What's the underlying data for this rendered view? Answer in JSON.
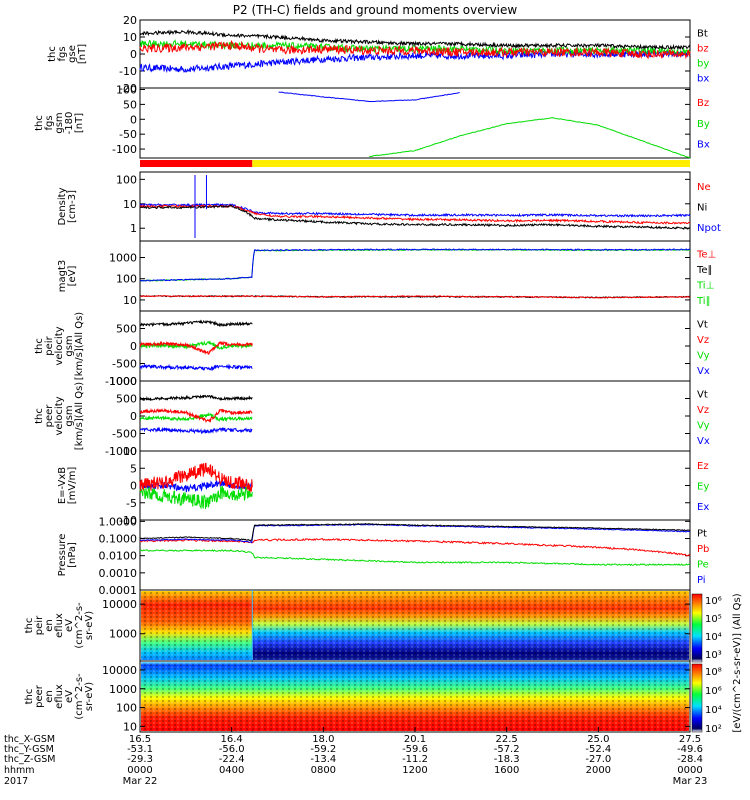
{
  "title": "P2 (TH-C) fields and ground moments overview",
  "colors": {
    "black": "#000000",
    "red": "#ff0000",
    "green": "#00dd00",
    "blue": "#0000ff",
    "yellow": "#ffee00"
  },
  "panels": [
    {
      "id": "fgs",
      "ylabel": [
        "thc",
        "fgs",
        "gse",
        "[nT]"
      ],
      "ticks": [
        {
          "v": 20,
          "t": "20"
        },
        {
          "v": 10,
          "t": "10"
        },
        {
          "v": 0,
          "t": "0"
        },
        {
          "v": -10,
          "t": "-10"
        },
        {
          "v": -20,
          "t": "-20"
        }
      ],
      "ylim": [
        -20,
        20
      ],
      "log": false,
      "legend": [
        {
          "text": "Bt",
          "color": "black"
        },
        {
          "text": "bz",
          "color": "red"
        },
        {
          "text": "by",
          "color": "green"
        },
        {
          "text": "bx",
          "color": "blue"
        }
      ]
    },
    {
      "id": "fgs180",
      "ylabel": [
        "thc",
        "fgs",
        "gsm",
        "-180",
        "[nT]"
      ],
      "ticks": [
        {
          "v": 100,
          "t": "100"
        },
        {
          "v": 50,
          "t": "50"
        },
        {
          "v": 0,
          "t": "0"
        },
        {
          "v": -50,
          "t": "-50"
        },
        {
          "v": -100,
          "t": "-100"
        }
      ],
      "ylim": [
        -130,
        105
      ],
      "log": false,
      "legend": [
        {
          "text": "Bz",
          "color": "red"
        },
        {
          "text": "By",
          "color": "green"
        },
        {
          "text": "Bx",
          "color": "blue"
        }
      ]
    },
    {
      "id": "density",
      "ylabel": [
        "Density",
        "[cm-3]"
      ],
      "ticks": [
        {
          "v": 100,
          "t": "100"
        },
        {
          "v": 10,
          "t": "10"
        },
        {
          "v": 1,
          "t": "1"
        }
      ],
      "ylim": [
        0.3,
        200
      ],
      "log": true,
      "legend": [
        {
          "text": "Ne",
          "color": "red"
        },
        {
          "text": "Ni",
          "color": "black"
        },
        {
          "text": "Npot",
          "color": "blue"
        }
      ]
    },
    {
      "id": "temp",
      "ylabel": [
        "magt3",
        "[eV]"
      ],
      "ticks": [
        {
          "v": 1000,
          "t": "1000"
        },
        {
          "v": 100,
          "t": "100"
        },
        {
          "v": 10,
          "t": "10"
        }
      ],
      "ylim": [
        3,
        6000
      ],
      "log": true,
      "legend": [
        {
          "text": "Te⊥",
          "color": "red"
        },
        {
          "text": "Te∥",
          "color": "black"
        },
        {
          "text": "Ti⊥",
          "color": "green"
        },
        {
          "text": "Ti∥",
          "color": "green"
        }
      ]
    },
    {
      "id": "peir_vel",
      "ylabel": [
        "thc",
        "peir",
        "velocity",
        "gsm",
        "[km/s](All Qs)"
      ],
      "ticks": [
        {
          "v": 500,
          "t": "500"
        },
        {
          "v": 0,
          "t": "0"
        },
        {
          "v": -500,
          "t": "-500"
        },
        {
          "v": -1000,
          "t": "-1000"
        }
      ],
      "ylim": [
        -1000,
        1000
      ],
      "log": false,
      "legend": [
        {
          "text": "Vt",
          "color": "black"
        },
        {
          "text": "Vz",
          "color": "red"
        },
        {
          "text": "Vy",
          "color": "green"
        },
        {
          "text": "Vx",
          "color": "blue"
        }
      ]
    },
    {
      "id": "peer_vel",
      "ylabel": [
        "thc",
        "peer",
        "velocity",
        "gsm",
        "[km/s](All Qs)"
      ],
      "ticks": [
        {
          "v": 1000,
          "t": "1000"
        },
        {
          "v": 500,
          "t": "500"
        },
        {
          "v": 0,
          "t": "0"
        },
        {
          "v": -500,
          "t": "-500"
        },
        {
          "v": -1000,
          "t": "-1000"
        }
      ],
      "ylim": [
        -1000,
        1000
      ],
      "log": false,
      "legend": [
        {
          "text": "Vt",
          "color": "black"
        },
        {
          "text": "Vz",
          "color": "red"
        },
        {
          "text": "Vy",
          "color": "green"
        },
        {
          "text": "Vx",
          "color": "blue"
        }
      ]
    },
    {
      "id": "efield",
      "ylabel": [
        "E=-VxB",
        "[mV/m]"
      ],
      "ticks": [
        {
          "v": 10,
          "t": "10"
        },
        {
          "v": 5,
          "t": "5"
        },
        {
          "v": 0,
          "t": "0"
        },
        {
          "v": -5,
          "t": "-5"
        },
        {
          "v": -10,
          "t": "-10"
        }
      ],
      "ylim": [
        -10,
        10
      ],
      "log": false,
      "legend": [
        {
          "text": "Ez",
          "color": "red"
        },
        {
          "text": "Ey",
          "color": "green"
        },
        {
          "text": "Ex",
          "color": "blue"
        }
      ]
    },
    {
      "id": "pressure",
      "ylabel": [
        "Pressure",
        "[nPa]"
      ],
      "ticks": [
        {
          "v": 1,
          "t": "1.0000"
        },
        {
          "v": 0.1,
          "t": "0.1000"
        },
        {
          "v": 0.01,
          "t": "0.0100"
        },
        {
          "v": 0.001,
          "t": "0.0010"
        },
        {
          "v": 0.0001,
          "t": "0.0001"
        }
      ],
      "ylim": [
        0.0001,
        1.2
      ],
      "log": true,
      "legend": [
        {
          "text": "Pt",
          "color": "black"
        },
        {
          "text": "Pb",
          "color": "red"
        },
        {
          "text": "Pe",
          "color": "green"
        },
        {
          "text": "Pi",
          "color": "blue"
        }
      ]
    },
    {
      "id": "peir_spec",
      "ylabel": [
        "thc",
        "peir",
        "en",
        "eflux",
        "eV",
        "(cm^2-s-",
        "sr-eV)"
      ],
      "ticks": [
        {
          "v": 10000,
          "t": "10000"
        },
        {
          "v": 1000,
          "t": "1000"
        }
      ],
      "ylim": [
        120,
        30000
      ],
      "log": true,
      "legend": []
    },
    {
      "id": "peer_spec",
      "ylabel": [
        "thc",
        "peer",
        "en",
        "eflux",
        "eV",
        "(cm^2-s-",
        "sr-eV)"
      ],
      "ticks": [
        {
          "v": 10000,
          "t": "10000"
        },
        {
          "v": 1000,
          "t": "1000"
        },
        {
          "v": 100,
          "t": "100"
        },
        {
          "v": 10,
          "t": "10"
        }
      ],
      "ylim": [
        5,
        30000
      ],
      "log": true,
      "legend": []
    }
  ],
  "colorbar": {
    "label": "[eV/(cm^2-s-sr-eV)] (All Qs)",
    "top_ticks": [
      "10⁶",
      "10⁵",
      "10⁴",
      "10³"
    ],
    "bottom_ticks": [
      "10⁸",
      "10⁶",
      "10⁴",
      "10²"
    ]
  },
  "axis": {
    "row_labels": [
      "thc_X-GSM",
      "thc_Y-GSM",
      "thc_Z-GSM",
      "hhmm",
      "2017"
    ],
    "ticks": [
      {
        "hour": 0,
        "x": "16.5",
        "y": "-53.1",
        "z": "-29.3",
        "hhmm": "0000",
        "date": "Mar 22"
      },
      {
        "hour": 4,
        "x": "16.4",
        "y": "-56.0",
        "z": "-22.4",
        "hhmm": "0400",
        "date": ""
      },
      {
        "hour": 8,
        "x": "18.0",
        "y": "-59.2",
        "z": "-13.4",
        "hhmm": "0800",
        "date": ""
      },
      {
        "hour": 12,
        "x": "20.1",
        "y": "-59.6",
        "z": "-11.2",
        "hhmm": "1200",
        "date": ""
      },
      {
        "hour": 16,
        "x": "22.5",
        "y": "-57.2",
        "z": "-18.3",
        "hhmm": "1600",
        "date": ""
      },
      {
        "hour": 20,
        "x": "25.0",
        "y": "-52.4",
        "z": "-27.0",
        "hhmm": "2000",
        "date": ""
      },
      {
        "hour": 24,
        "x": "27.5",
        "y": "-49.6",
        "z": "-28.4",
        "hhmm": "0000",
        "date": "Mar 23"
      }
    ]
  },
  "chart_data": {
    "type": "line",
    "title": "P2 (TH-C) fields and ground moments overview",
    "x_unit": "hhmm",
    "xlim": [
      "2017-03-22 00:00",
      "2017-03-23 00:00"
    ],
    "mode_bar": [
      {
        "from_hour": 0,
        "to_hour": 4.9,
        "color": "red"
      },
      {
        "from_hour": 4.9,
        "to_hour": 24,
        "color": "yellow"
      }
    ],
    "series": {
      "fgs": {
        "x": [
          0,
          2,
          4,
          6,
          8,
          10,
          12,
          14,
          16,
          18,
          20,
          22,
          24
        ],
        "Bt": [
          12,
          13,
          11,
          10,
          8,
          7,
          6,
          6,
          5,
          5,
          5,
          4,
          4
        ],
        "bz": [
          3,
          4,
          5,
          2,
          3,
          2,
          2,
          1,
          1,
          1,
          1,
          0,
          0
        ],
        "by": [
          6,
          6,
          5,
          5,
          4,
          3,
          3,
          3,
          2,
          2,
          2,
          2,
          1
        ],
        "bx": [
          -8,
          -9,
          -7,
          -5,
          -3,
          -2,
          -1,
          -1,
          -1,
          0,
          0,
          0,
          0
        ]
      },
      "fgs180": {
        "x": [
          0,
          2,
          4,
          6,
          8,
          10,
          12,
          14,
          16,
          18,
          20,
          22,
          24
        ],
        "Bx": [
          null,
          null,
          null,
          92,
          75,
          60,
          65,
          90,
          null,
          null,
          null,
          null,
          null
        ],
        "By": [
          null,
          null,
          null,
          null,
          null,
          -125,
          -105,
          -55,
          -15,
          5,
          -20,
          -75,
          -130
        ]
      },
      "density": {
        "x": [
          0,
          2,
          4,
          5,
          6,
          8,
          10,
          12,
          14,
          16,
          18,
          20,
          22,
          24
        ],
        "Ne": [
          8,
          8,
          8,
          4,
          3,
          3,
          2.6,
          2.3,
          2.2,
          2.0,
          2.1,
          1.9,
          1.7,
          1.6
        ],
        "Ni": [
          7,
          7,
          8,
          2.5,
          2.2,
          1.8,
          1.5,
          1.4,
          1.4,
          1.3,
          1.4,
          1.2,
          1.1,
          1.0
        ],
        "Npot": [
          9,
          9,
          9,
          4.5,
          4,
          4,
          3.7,
          3.4,
          3.5,
          3.4,
          3.5,
          3.3,
          3.2,
          3.4
        ]
      },
      "temp": {
        "x": [
          0,
          2,
          4,
          4.9,
          5,
          8,
          12,
          16,
          20,
          24
        ],
        "Te_perp": [
          15,
          15,
          15,
          15,
          15,
          14,
          15,
          14,
          13,
          14
        ],
        "Te_par": [
          15,
          15,
          15,
          15,
          15,
          14,
          14,
          14,
          13,
          14
        ],
        "Ti_perp": [
          80,
          90,
          100,
          120,
          2200,
          2300,
          2400,
          2400,
          2300,
          2400
        ],
        "Ti_par": [
          80,
          90,
          100,
          120,
          2100,
          2200,
          2300,
          2300,
          2200,
          2300
        ]
      },
      "peir_vel": {
        "x": [
          0,
          1,
          2,
          3,
          3.5,
          4,
          4.9
        ],
        "Vt": [
          600,
          620,
          650,
          700,
          600,
          620,
          640
        ],
        "Vz": [
          50,
          60,
          30,
          -200,
          80,
          50,
          40
        ],
        "Vy": [
          0,
          20,
          -20,
          100,
          -50,
          0,
          10
        ],
        "Vx": [
          -580,
          -600,
          -620,
          -650,
          -580,
          -600,
          -610
        ]
      },
      "peer_vel": {
        "x": [
          0,
          1,
          2,
          3,
          3.5,
          4,
          4.9
        ],
        "Vt": [
          480,
          500,
          520,
          560,
          500,
          500,
          510
        ],
        "Vz": [
          120,
          150,
          100,
          -150,
          150,
          100,
          100
        ],
        "Vy": [
          -80,
          -50,
          -100,
          50,
          -100,
          -80,
          -80
        ],
        "Vx": [
          -380,
          -400,
          -420,
          -450,
          -380,
          -400,
          -410
        ]
      },
      "efield": {
        "x": [
          0,
          1,
          2,
          3,
          3.5,
          4,
          4.9
        ],
        "Ez": [
          0,
          1,
          3,
          5,
          2,
          1,
          0
        ],
        "Ey": [
          -2,
          -3,
          -4,
          -5,
          -2,
          -3,
          -2
        ],
        "Ex": [
          0,
          0,
          -1,
          0,
          1,
          0,
          0
        ]
      },
      "pressure": {
        "x": [
          0,
          2,
          4,
          4.9,
          5,
          8,
          10,
          12,
          16,
          20,
          22,
          24
        ],
        "Pt": [
          0.1,
          0.12,
          0.1,
          0.08,
          0.6,
          0.65,
          0.7,
          0.6,
          0.5,
          0.4,
          0.35,
          0.3
        ],
        "Pb": [
          0.07,
          0.08,
          0.07,
          0.06,
          0.08,
          0.09,
          0.08,
          0.07,
          0.05,
          0.03,
          0.02,
          0.01
        ],
        "Pe": [
          0.02,
          0.02,
          0.02,
          0.015,
          0.008,
          0.006,
          0.005,
          0.004,
          0.004,
          0.003,
          0.003,
          0.003
        ],
        "Pi": [
          0.08,
          0.09,
          0.08,
          0.06,
          0.55,
          0.6,
          0.65,
          0.55,
          0.45,
          0.35,
          0.3,
          0.25
        ]
      }
    }
  }
}
